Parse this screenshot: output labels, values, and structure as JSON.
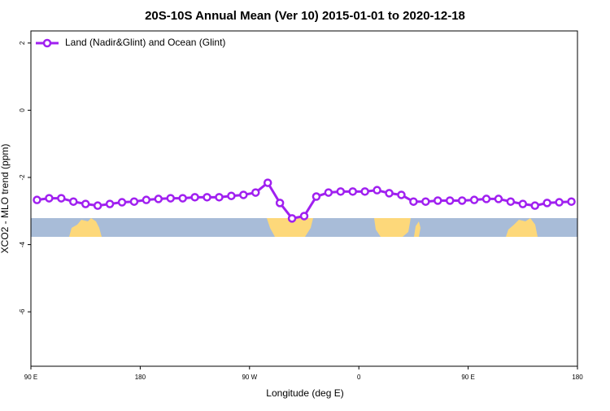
{
  "chart_data": {
    "type": "line",
    "title": "20S-10S Annual Mean (Ver 10)   2015-01-01 to 2020-12-18",
    "x_label": "Longitude (deg E)",
    "y_label": "XCO2 - MLO trend (ppm)",
    "x": [
      95,
      105,
      115,
      125,
      135,
      145,
      155,
      165,
      175,
      185,
      195,
      205,
      215,
      225,
      235,
      245,
      255,
      265,
      275,
      285,
      295,
      305,
      315,
      325,
      335,
      345,
      355,
      365,
      375,
      385,
      395,
      405,
      415,
      425,
      435,
      445,
      455,
      465,
      475,
      485,
      495,
      505,
      515,
      525,
      535
    ],
    "series": [
      {
        "name": "Land (Nadir&Glint) and Ocean (Glint)",
        "color": "#a020f0",
        "values": [
          -2.67,
          -2.62,
          -2.62,
          -2.72,
          -2.79,
          -2.84,
          -2.79,
          -2.74,
          -2.72,
          -2.67,
          -2.64,
          -2.62,
          -2.62,
          -2.59,
          -2.59,
          -2.59,
          -2.55,
          -2.52,
          -2.45,
          -2.16,
          -2.76,
          -3.22,
          -3.15,
          -2.57,
          -2.45,
          -2.42,
          -2.42,
          -2.42,
          -2.38,
          -2.47,
          -2.52,
          -2.72,
          -2.72,
          -2.69,
          -2.69,
          -2.69,
          -2.67,
          -2.64,
          -2.64,
          -2.72,
          -2.79,
          -2.84,
          -2.76,
          -2.74,
          -2.72
        ]
      }
    ],
    "xlim": [
      90,
      540
    ],
    "xticks": [
      {
        "value": 90,
        "label": "90 E"
      },
      180,
      {
        "value": 270,
        "label": "90 W"
      },
      {
        "value": 360,
        "label": "0"
      },
      {
        "value": 450,
        "label": "90 E"
      },
      {
        "value": 540,
        "label": "180"
      }
    ],
    "ylim": [
      -7.62,
      2.36
    ],
    "yticks": [
      -6,
      -4,
      -2,
      0,
      2
    ],
    "legend": "top-left"
  }
}
